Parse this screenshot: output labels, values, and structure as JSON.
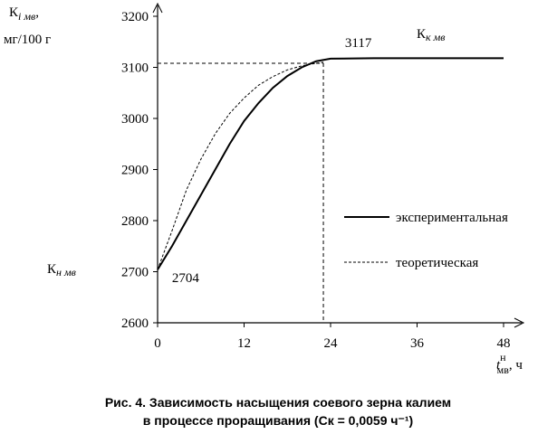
{
  "chart_data": {
    "type": "line",
    "y_label": {
      "main": "К",
      "sub": "i мв",
      "tail": ",",
      "unit": "мг/100 г"
    },
    "x_label": {
      "main": "t",
      "sup": "н",
      "sub": "мв",
      "tail": ", ч"
    },
    "caption": [
      "Рис. 4. Зависимость насыщения соевого зерна калием",
      "в процессе проращивания (Cк = 0,0059 ч⁻¹)"
    ],
    "xlim": [
      0,
      48
    ],
    "xticks": [
      0,
      12,
      24,
      36,
      48
    ],
    "ylim": [
      2600,
      3200
    ],
    "yticks": [
      2600,
      2700,
      2800,
      2900,
      3000,
      3100,
      3200
    ],
    "legend": "right",
    "series": [
      {
        "name": "экспериментальная",
        "color": "#000000",
        "dash": "solid",
        "x": [
          0,
          2,
          4,
          6,
          8,
          10,
          12,
          14,
          16,
          18,
          20,
          22,
          24,
          30,
          36,
          42,
          48
        ],
        "values": [
          2704,
          2750,
          2800,
          2850,
          2900,
          2950,
          2995,
          3030,
          3060,
          3083,
          3100,
          3112,
          3117,
          3118,
          3118,
          3118,
          3118
        ]
      },
      {
        "name": "теоретическая",
        "color": "#000000",
        "dash": "dashed",
        "x": [
          0,
          2,
          4,
          6,
          8,
          10,
          12,
          14,
          16,
          18,
          20,
          22,
          23
        ],
        "values": [
          2704,
          2780,
          2860,
          2920,
          2970,
          3010,
          3040,
          3065,
          3082,
          3095,
          3103,
          3108,
          3110
        ]
      }
    ],
    "guide": {
      "x": 23,
      "y": 3108
    },
    "annotations": [
      {
        "text": "3117",
        "x": 26,
        "y": 3140
      },
      {
        "text": "2704",
        "x": 2,
        "y": 2680
      }
    ],
    "k_labels": [
      {
        "main": "К",
        "sub": "к мв"
      },
      {
        "main": "К",
        "sub": "н мв"
      }
    ]
  }
}
